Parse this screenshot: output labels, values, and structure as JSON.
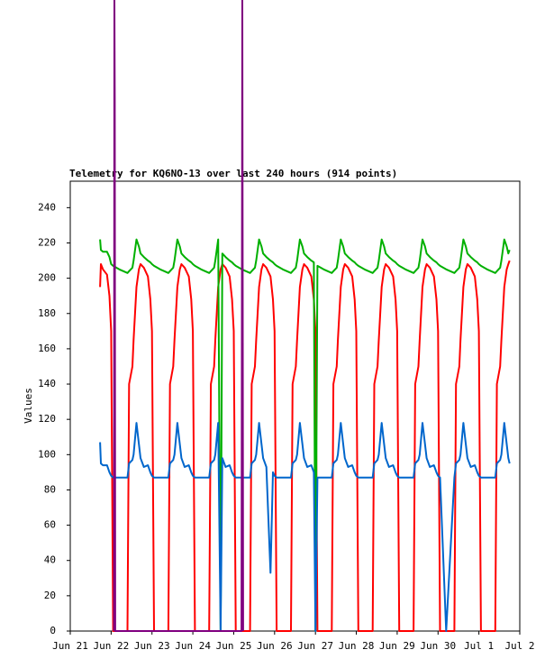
{
  "chart_data": {
    "type": "line",
    "title": "Telemetry for KQ6NO-13 over last 240 hours (914 points)",
    "y_label": "Values",
    "xlim": [
      0,
      11
    ],
    "ylim": [
      0,
      255
    ],
    "xticks": [
      {
        "value": 0,
        "label": "Jun 21"
      },
      {
        "value": 1,
        "label": "Jun 22"
      },
      {
        "value": 2,
        "label": "Jun 23"
      },
      {
        "value": 3,
        "label": "Jun 24"
      },
      {
        "value": 4,
        "label": "Jun 25"
      },
      {
        "value": 5,
        "label": "Jun 26"
      },
      {
        "value": 6,
        "label": "Jun 27"
      },
      {
        "value": 7,
        "label": "Jun 28"
      },
      {
        "value": 8,
        "label": "Jun 29"
      },
      {
        "value": 9,
        "label": "Jun 30"
      },
      {
        "value": 10,
        "label": "Jul 1"
      },
      {
        "value": 11,
        "label": "Jul 2"
      }
    ],
    "yticks": [
      0,
      20,
      40,
      60,
      80,
      100,
      120,
      140,
      160,
      180,
      200,
      220,
      240
    ],
    "x": [
      0.73,
      0.75,
      0.8,
      0.9,
      0.96,
      1,
      1.05,
      1.2,
      1.4,
      1.44,
      1.52,
      1.55,
      1.62,
      1.68,
      1.72,
      1.8,
      1.9,
      1.96,
      2,
      2.05,
      2.2,
      2.4,
      2.44,
      2.52,
      2.55,
      2.62,
      2.68,
      2.72,
      2.8,
      2.9,
      2.96,
      3,
      3.05,
      3.2,
      3.4,
      3.44,
      3.52,
      3.55,
      3.62,
      3.68,
      3.72,
      3.8,
      3.9,
      3.96,
      4,
      4.05,
      4.2,
      4.4,
      4.44,
      4.52,
      4.55,
      4.62,
      4.68,
      4.72,
      4.8,
      4.9,
      4.96,
      5,
      5.05,
      5.2,
      5.4,
      5.44,
      5.52,
      5.55,
      5.62,
      5.68,
      5.72,
      5.8,
      5.9,
      5.96,
      6,
      6.05,
      6.2,
      6.4,
      6.44,
      6.52,
      6.55,
      6.62,
      6.68,
      6.72,
      6.8,
      6.9,
      6.96,
      7,
      7.05,
      7.2,
      7.4,
      7.44,
      7.52,
      7.55,
      7.62,
      7.68,
      7.72,
      7.8,
      7.9,
      7.96,
      8,
      8.05,
      8.2,
      8.4,
      8.44,
      8.52,
      8.55,
      8.62,
      8.68,
      8.72,
      8.8,
      8.9,
      8.96,
      9,
      9.05,
      9.2,
      9.4,
      9.44,
      9.52,
      9.55,
      9.62,
      9.68,
      9.72,
      9.8,
      9.9,
      9.96,
      10,
      10.05,
      10.2,
      10.4,
      10.44,
      10.52,
      10.55,
      10.62,
      10.68,
      10.72,
      10.75
    ],
    "series": [
      {
        "color": "#ff0000",
        "values": [
          195,
          208,
          205,
          202,
          190,
          170,
          0,
          0,
          0,
          140,
          150,
          165,
          195,
          205,
          208,
          206,
          201,
          188,
          170,
          0,
          0,
          0,
          140,
          150,
          165,
          195,
          205,
          208,
          206,
          201,
          188,
          170,
          0,
          0,
          0,
          140,
          150,
          165,
          195,
          205,
          208,
          206,
          201,
          188,
          170,
          0,
          0,
          0,
          140,
          150,
          165,
          195,
          205,
          208,
          206,
          201,
          188,
          170,
          0,
          0,
          0,
          140,
          150,
          165,
          195,
          205,
          208,
          206,
          201,
          188,
          170,
          0,
          0,
          0,
          140,
          150,
          165,
          195,
          205,
          208,
          206,
          201,
          188,
          170,
          0,
          0,
          0,
          140,
          150,
          165,
          195,
          205,
          208,
          206,
          201,
          188,
          170,
          0,
          0,
          0,
          140,
          150,
          165,
          195,
          205,
          208,
          206,
          201,
          188,
          170,
          0,
          0,
          0,
          140,
          150,
          165,
          195,
          205,
          208,
          206,
          201,
          188,
          170,
          0,
          0,
          0,
          140,
          150,
          165,
          195,
          205,
          208,
          210
        ]
      },
      {
        "color": "#00b000",
        "values": [
          222,
          216,
          215,
          215,
          212,
          208,
          207,
          205,
          203,
          204,
          206,
          210,
          222,
          218,
          214,
          212,
          210,
          209,
          208,
          207,
          205,
          203,
          204,
          206,
          210,
          222,
          218,
          214,
          212,
          210,
          209,
          208,
          207,
          205,
          203,
          204,
          206,
          210,
          222,
          0,
          214,
          212,
          210,
          209,
          208,
          207,
          205,
          203,
          204,
          206,
          210,
          222,
          218,
          214,
          212,
          210,
          209,
          208,
          207,
          205,
          203,
          204,
          206,
          210,
          222,
          218,
          214,
          212,
          210,
          209,
          0,
          207,
          205,
          203,
          204,
          206,
          210,
          222,
          218,
          214,
          212,
          210,
          209,
          208,
          207,
          205,
          203,
          204,
          206,
          210,
          222,
          218,
          214,
          212,
          210,
          209,
          208,
          207,
          205,
          203,
          204,
          206,
          210,
          222,
          218,
          214,
          212,
          210,
          209,
          208,
          207,
          205,
          203,
          204,
          206,
          210,
          222,
          218,
          214,
          212,
          210,
          209,
          208,
          207,
          205,
          203,
          204,
          206,
          210,
          222,
          218,
          214,
          216
        ]
      },
      {
        "color": "#0066cc",
        "values": [
          107,
          95,
          94,
          94,
          90,
          88,
          87,
          87,
          87,
          95,
          97,
          100,
          118,
          106,
          98,
          93,
          94,
          90,
          88,
          87,
          87,
          87,
          95,
          97,
          100,
          118,
          106,
          98,
          93,
          94,
          90,
          88,
          87,
          87,
          87,
          95,
          97,
          100,
          118,
          0,
          98,
          93,
          94,
          90,
          88,
          87,
          87,
          87,
          95,
          97,
          100,
          118,
          106,
          98,
          93,
          33,
          90,
          88,
          87,
          87,
          87,
          95,
          97,
          100,
          118,
          106,
          98,
          93,
          94,
          90,
          0,
          87,
          87,
          87,
          95,
          97,
          100,
          118,
          106,
          98,
          93,
          94,
          90,
          88,
          87,
          87,
          87,
          95,
          97,
          100,
          118,
          106,
          98,
          93,
          94,
          90,
          88,
          87,
          87,
          87,
          95,
          97,
          100,
          118,
          106,
          98,
          93,
          94,
          90,
          88,
          87,
          0,
          87,
          95,
          97,
          100,
          118,
          106,
          98,
          93,
          94,
          90,
          88,
          87,
          87,
          87,
          95,
          97,
          100,
          118,
          106,
          98,
          95
        ]
      },
      {
        "color": "#800080",
        "x": [
          1.07,
          1.08,
          1.09,
          1.1,
          4.19,
          4.21,
          4.23
        ],
        "values": [
          0,
          360,
          300,
          0,
          0,
          360,
          0
        ]
      }
    ]
  }
}
